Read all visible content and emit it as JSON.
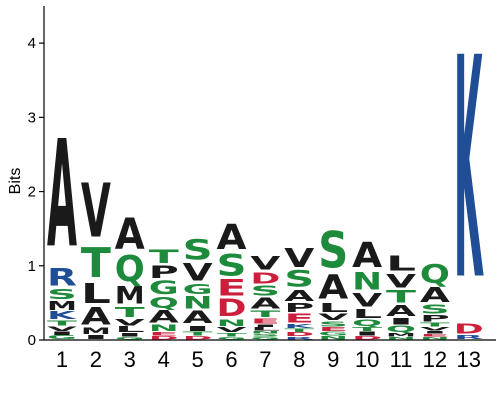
{
  "chart_data": {
    "type": "sequence-logo",
    "ylabel": "Bits",
    "ylim": [
      0,
      4.5
    ],
    "yticks": [
      "0",
      "1",
      "2",
      "3",
      "4"
    ],
    "ytick_values": [
      0,
      1,
      2,
      3,
      4
    ],
    "x_tick_labels": [
      "1",
      "2",
      "3",
      "4",
      "5",
      "6",
      "7",
      "8",
      "9",
      "10",
      "11",
      "12",
      "13"
    ],
    "colors": {
      "hydrophobic": "#1a1a1a",
      "polar": "#1e8a3c",
      "basic": "#1f4e96",
      "acidic": "#cc1f3c"
    },
    "positions": [
      {
        "label": "1",
        "stack": [
          {
            "letter": "G",
            "height": 0.06,
            "color": "#1e8a3c"
          },
          {
            "letter": "I",
            "height": 0.05,
            "color": "#1a1a1a"
          },
          {
            "letter": "V",
            "height": 0.07,
            "color": "#1a1a1a"
          },
          {
            "letter": "T",
            "height": 0.08,
            "color": "#1e8a3c"
          },
          {
            "letter": "K",
            "height": 0.12,
            "color": "#1f4e96"
          },
          {
            "letter": "M",
            "height": 0.14,
            "color": "#1a1a1a"
          },
          {
            "letter": "S",
            "height": 0.16,
            "color": "#1e8a3c"
          },
          {
            "letter": "R",
            "height": 0.28,
            "color": "#1f4e96"
          },
          {
            "letter": "A",
            "height": 1.72,
            "color": "#1a1a1a"
          }
        ]
      },
      {
        "label": "2",
        "stack": [
          {
            "letter": "I",
            "height": 0.06,
            "color": "#1a1a1a"
          },
          {
            "letter": "M",
            "height": 0.1,
            "color": "#1a1a1a"
          },
          {
            "letter": "A",
            "height": 0.28,
            "color": "#1a1a1a"
          },
          {
            "letter": "L",
            "height": 0.32,
            "color": "#1a1a1a"
          },
          {
            "letter": "T",
            "height": 0.48,
            "color": "#1e8a3c"
          },
          {
            "letter": "V",
            "height": 0.86,
            "color": "#1a1a1a"
          }
        ]
      },
      {
        "label": "3",
        "stack": [
          {
            "letter": "G",
            "height": 0.04,
            "color": "#1e8a3c"
          },
          {
            "letter": "I",
            "height": 0.05,
            "color": "#1a1a1a"
          },
          {
            "letter": "L",
            "height": 0.09,
            "color": "#1a1a1a"
          },
          {
            "letter": "V",
            "height": 0.1,
            "color": "#1a1a1a"
          },
          {
            "letter": "T",
            "height": 0.16,
            "color": "#1e8a3c"
          },
          {
            "letter": "M",
            "height": 0.28,
            "color": "#1a1a1a"
          },
          {
            "letter": "Q",
            "height": 0.42,
            "color": "#1e8a3c"
          },
          {
            "letter": "A",
            "height": 0.5,
            "color": "#1a1a1a"
          }
        ]
      },
      {
        "label": "4",
        "stack": [
          {
            "letter": "D",
            "height": 0.05,
            "color": "#cc1f3c"
          },
          {
            "letter": "E",
            "height": 0.05,
            "color": "#cc1f3c"
          },
          {
            "letter": "N",
            "height": 0.1,
            "color": "#1e8a3c"
          },
          {
            "letter": "A",
            "height": 0.2,
            "color": "#1a1a1a"
          },
          {
            "letter": "Q",
            "height": 0.18,
            "color": "#1e8a3c"
          },
          {
            "letter": "G",
            "height": 0.22,
            "color": "#1e8a3c"
          },
          {
            "letter": "P",
            "height": 0.2,
            "color": "#1a1a1a"
          },
          {
            "letter": "T",
            "height": 0.22,
            "color": "#1e8a3c"
          }
        ]
      },
      {
        "label": "5",
        "stack": [
          {
            "letter": "D",
            "height": 0.05,
            "color": "#cc1f3c"
          },
          {
            "letter": "T",
            "height": 0.06,
            "color": "#1e8a3c"
          },
          {
            "letter": "I",
            "height": 0.08,
            "color": "#1a1a1a"
          },
          {
            "letter": "A",
            "height": 0.2,
            "color": "#1a1a1a"
          },
          {
            "letter": "N",
            "height": 0.2,
            "color": "#1e8a3c"
          },
          {
            "letter": "G",
            "height": 0.16,
            "color": "#1e8a3c"
          },
          {
            "letter": "V",
            "height": 0.28,
            "color": "#1a1a1a"
          },
          {
            "letter": "S",
            "height": 0.32,
            "color": "#1e8a3c"
          }
        ]
      },
      {
        "label": "6",
        "stack": [
          {
            "letter": "G",
            "height": 0.04,
            "color": "#1e8a3c"
          },
          {
            "letter": "T",
            "height": 0.05,
            "color": "#1e8a3c"
          },
          {
            "letter": "V",
            "height": 0.08,
            "color": "#1a1a1a"
          },
          {
            "letter": "N",
            "height": 0.1,
            "color": "#1e8a3c"
          },
          {
            "letter": "D",
            "height": 0.28,
            "color": "#cc1f3c"
          },
          {
            "letter": "E",
            "height": 0.26,
            "color": "#cc1f3c"
          },
          {
            "letter": "S",
            "height": 0.34,
            "color": "#1e8a3c"
          },
          {
            "letter": "A",
            "height": 0.4,
            "color": "#1a1a1a"
          }
        ]
      },
      {
        "label": "7",
        "stack": [
          {
            "letter": "G",
            "height": 0.04,
            "color": "#1e8a3c"
          },
          {
            "letter": "S",
            "height": 0.04,
            "color": "#1e8a3c"
          },
          {
            "letter": "N",
            "height": 0.04,
            "color": "#1e8a3c"
          },
          {
            "letter": "L",
            "height": 0.05,
            "color": "#1a1a1a"
          },
          {
            "letter": "I",
            "height": 0.04,
            "color": "#1a1a1a"
          },
          {
            "letter": "E",
            "height": 0.08,
            "color": "#cc1f3c"
          },
          {
            "letter": "T",
            "height": 0.1,
            "color": "#1e8a3c"
          },
          {
            "letter": "A",
            "height": 0.18,
            "color": "#1a1a1a"
          },
          {
            "letter": "S",
            "height": 0.16,
            "color": "#1e8a3c"
          },
          {
            "letter": "D",
            "height": 0.18,
            "color": "#cc1f3c"
          },
          {
            "letter": "V",
            "height": 0.22,
            "color": "#1a1a1a"
          }
        ]
      },
      {
        "label": "8",
        "stack": [
          {
            "letter": "R",
            "height": 0.04,
            "color": "#1f4e96"
          },
          {
            "letter": "D",
            "height": 0.06,
            "color": "#cc1f3c"
          },
          {
            "letter": "T",
            "height": 0.05,
            "color": "#1e8a3c"
          },
          {
            "letter": "K",
            "height": 0.06,
            "color": "#1f4e96"
          },
          {
            "letter": "E",
            "height": 0.14,
            "color": "#cc1f3c"
          },
          {
            "letter": "P",
            "height": 0.14,
            "color": "#1a1a1a"
          },
          {
            "letter": "A",
            "height": 0.18,
            "color": "#1a1a1a"
          },
          {
            "letter": "S",
            "height": 0.26,
            "color": "#1e8a3c"
          },
          {
            "letter": "V",
            "height": 0.3,
            "color": "#1a1a1a"
          }
        ]
      },
      {
        "label": "9",
        "stack": [
          {
            "letter": "N",
            "height": 0.05,
            "color": "#1e8a3c"
          },
          {
            "letter": "G",
            "height": 0.06,
            "color": "#1e8a3c"
          },
          {
            "letter": "E",
            "height": 0.06,
            "color": "#cc1f3c"
          },
          {
            "letter": "S",
            "height": 0.08,
            "color": "#1e8a3c"
          },
          {
            "letter": "V",
            "height": 0.1,
            "color": "#1a1a1a"
          },
          {
            "letter": "L",
            "height": 0.14,
            "color": "#1a1a1a"
          },
          {
            "letter": "A",
            "height": 0.38,
            "color": "#1a1a1a"
          },
          {
            "letter": "S",
            "height": 0.58,
            "color": "#1e8a3c"
          }
        ]
      },
      {
        "label": "10",
        "stack": [
          {
            "letter": "D",
            "height": 0.05,
            "color": "#cc1f3c"
          },
          {
            "letter": "I",
            "height": 0.06,
            "color": "#1a1a1a"
          },
          {
            "letter": "T",
            "height": 0.06,
            "color": "#1e8a3c"
          },
          {
            "letter": "Q",
            "height": 0.1,
            "color": "#1e8a3c"
          },
          {
            "letter": "L",
            "height": 0.14,
            "color": "#1a1a1a"
          },
          {
            "letter": "V",
            "height": 0.22,
            "color": "#1a1a1a"
          },
          {
            "letter": "N",
            "height": 0.28,
            "color": "#1e8a3c"
          },
          {
            "letter": "A",
            "height": 0.4,
            "color": "#1a1a1a"
          }
        ]
      },
      {
        "label": "11",
        "stack": [
          {
            "letter": "N",
            "height": 0.04,
            "color": "#1e8a3c"
          },
          {
            "letter": "M",
            "height": 0.05,
            "color": "#1a1a1a"
          },
          {
            "letter": "Q",
            "height": 0.1,
            "color": "#1e8a3c"
          },
          {
            "letter": "I",
            "height": 0.1,
            "color": "#1a1a1a"
          },
          {
            "letter": "A",
            "height": 0.18,
            "color": "#1a1a1a"
          },
          {
            "letter": "T",
            "height": 0.2,
            "color": "#1e8a3c"
          },
          {
            "letter": "V",
            "height": 0.22,
            "color": "#1a1a1a"
          },
          {
            "letter": "L",
            "height": 0.24,
            "color": "#1a1a1a"
          }
        ]
      },
      {
        "label": "12",
        "stack": [
          {
            "letter": "N",
            "height": 0.04,
            "color": "#1e8a3c"
          },
          {
            "letter": "E",
            "height": 0.04,
            "color": "#cc1f3c"
          },
          {
            "letter": "I",
            "height": 0.04,
            "color": "#1a1a1a"
          },
          {
            "letter": "V",
            "height": 0.05,
            "color": "#1a1a1a"
          },
          {
            "letter": "T",
            "height": 0.06,
            "color": "#1e8a3c"
          },
          {
            "letter": "P",
            "height": 0.1,
            "color": "#1a1a1a"
          },
          {
            "letter": "S",
            "height": 0.14,
            "color": "#1e8a3c"
          },
          {
            "letter": "A",
            "height": 0.24,
            "color": "#1a1a1a"
          },
          {
            "letter": "Q",
            "height": 0.3,
            "color": "#1e8a3c"
          }
        ]
      },
      {
        "label": "13",
        "stack": [
          {
            "letter": "R",
            "height": 0.06,
            "color": "#1f4e96"
          },
          {
            "letter": "D",
            "height": 0.16,
            "color": "#cc1f3c"
          },
          {
            "letter": "K",
            "height": 3.55,
            "color": "#1f4e96"
          }
        ]
      }
    ]
  }
}
